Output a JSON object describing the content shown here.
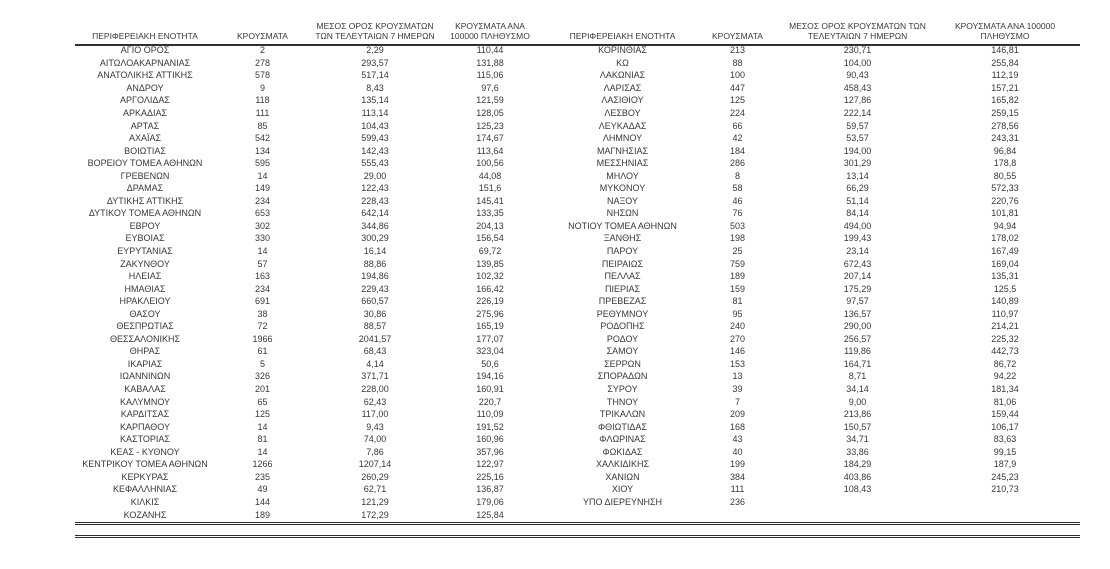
{
  "document": {
    "kind": "regional-cases-report-table",
    "language": "el"
  },
  "colors": {
    "text": "#383838",
    "rules": "#2f2f2f",
    "background": "#ffffff"
  },
  "table": {
    "columns": [
      "ΠΕΡΙΦΕΡΕΙΑΚΗ ΕΝΟΤΗΤΑ",
      "ΚΡΟΥΣΜΑΤΑ",
      "ΜΕΣΟΣ ΟΡΟΣ ΚΡΟΥΣΜΑΤΩΝ ΤΩΝ ΤΕΛΕΥΤΑΙΩΝ 7 ΗΜΕΡΩΝ",
      "ΚΡΟΥΣΜΑΤΑ ΑΝΑ 100000 ΠΛΗΘΥΣΜΟ"
    ],
    "left_rows": [
      [
        "ΑΓΙΟ ΟΡΟΣ",
        "2",
        "2,29",
        "110,44"
      ],
      [
        "ΑΙΤΩΛΟΑΚΑΡΝΑΝΙΑΣ",
        "278",
        "293,57",
        "131,88"
      ],
      [
        "ΑΝΑΤΟΛΙΚΗΣ ΑΤΤΙΚΗΣ",
        "578",
        "517,14",
        "115,06"
      ],
      [
        "ΑΝΔΡΟΥ",
        "9",
        "8,43",
        "97,6"
      ],
      [
        "ΑΡΓΟΛΙΔΑΣ",
        "118",
        "135,14",
        "121,59"
      ],
      [
        "ΑΡΚΑΔΙΑΣ",
        "111",
        "113,14",
        "128,05"
      ],
      [
        "ΑΡΤΑΣ",
        "85",
        "104,43",
        "125,23"
      ],
      [
        "ΑΧΑΪΑΣ",
        "542",
        "599,43",
        "174,67"
      ],
      [
        "ΒΟΙΩΤΙΑΣ",
        "134",
        "142,43",
        "113,64"
      ],
      [
        "ΒΟΡΕΙΟΥ ΤΟΜΕΑ ΑΘΗΝΩΝ",
        "595",
        "555,43",
        "100,56"
      ],
      [
        "ΓΡΕΒΕΝΩΝ",
        "14",
        "29,00",
        "44,08"
      ],
      [
        "ΔΡΑΜΑΣ",
        "149",
        "122,43",
        "151,6"
      ],
      [
        "ΔΥΤΙΚΗΣ ΑΤΤΙΚΗΣ",
        "234",
        "228,43",
        "145,41"
      ],
      [
        "ΔΥΤΙΚΟΥ ΤΟΜΕΑ ΑΘΗΝΩΝ",
        "653",
        "642,14",
        "133,35"
      ],
      [
        "ΕΒΡΟΥ",
        "302",
        "344,86",
        "204,13"
      ],
      [
        "ΕΥΒΟΙΑΣ",
        "330",
        "300,29",
        "156,54"
      ],
      [
        "ΕΥΡΥΤΑΝΙΑΣ",
        "14",
        "16,14",
        "69,72"
      ],
      [
        "ΖΑΚΥΝΘΟΥ",
        "57",
        "88,86",
        "139,85"
      ],
      [
        "ΗΛΕΙΑΣ",
        "163",
        "194,86",
        "102,32"
      ],
      [
        "ΗΜΑΘΙΑΣ",
        "234",
        "229,43",
        "166,42"
      ],
      [
        "ΗΡΑΚΛΕΙΟΥ",
        "691",
        "660,57",
        "226,19"
      ],
      [
        "ΘΑΣΟΥ",
        "38",
        "30,86",
        "275,96"
      ],
      [
        "ΘΕΣΠΡΩΤΙΑΣ",
        "72",
        "88,57",
        "165,19"
      ],
      [
        "ΘΕΣΣΑΛΟΝΙΚΗΣ",
        "1966",
        "2041,57",
        "177,07"
      ],
      [
        "ΘΗΡΑΣ",
        "61",
        "68,43",
        "323,04"
      ],
      [
        "ΙΚΑΡΙΑΣ",
        "5",
        "4,14",
        "50,6"
      ],
      [
        "ΙΩΑΝΝΙΝΩΝ",
        "326",
        "371,71",
        "194,16"
      ],
      [
        "ΚΑΒΑΛΑΣ",
        "201",
        "228,00",
        "160,91"
      ],
      [
        "ΚΑΛΥΜΝΟΥ",
        "65",
        "62,43",
        "220,7"
      ],
      [
        "ΚΑΡΔΙΤΣΑΣ",
        "125",
        "117,00",
        "110,09"
      ],
      [
        "ΚΑΡΠΑΘΟΥ",
        "14",
        "9,43",
        "191,52"
      ],
      [
        "ΚΑΣΤΟΡΙΑΣ",
        "81",
        "74,00",
        "160,96"
      ],
      [
        "ΚΕΑΣ - ΚΥΘΝΟΥ",
        "14",
        "7,86",
        "357,96"
      ],
      [
        "ΚΕΝΤΡΙΚΟΥ ΤΟΜΕΑ ΑΘΗΝΩΝ",
        "1266",
        "1207,14",
        "122,97"
      ],
      [
        "ΚΕΡΚΥΡΑΣ",
        "235",
        "260,29",
        "225,16"
      ],
      [
        "ΚΕΦΑΛΛΗΝΙΑΣ",
        "49",
        "62,71",
        "136,87"
      ],
      [
        "ΚΙΛΚΙΣ",
        "144",
        "121,29",
        "179,06"
      ],
      [
        "ΚΟΖΑΝΗΣ",
        "189",
        "172,29",
        "125,84"
      ]
    ],
    "right_rows": [
      [
        "ΚΟΡΙΝΘΙΑΣ",
        "213",
        "230,71",
        "146,81"
      ],
      [
        "ΚΩ",
        "88",
        "104,00",
        "255,84"
      ],
      [
        "ΛΑΚΩΝΙΑΣ",
        "100",
        "90,43",
        "112,19"
      ],
      [
        "ΛΑΡΙΣΑΣ",
        "447",
        "458,43",
        "157,21"
      ],
      [
        "ΛΑΣΙΘΙΟΥ",
        "125",
        "127,86",
        "165,82"
      ],
      [
        "ΛΕΣΒΟΥ",
        "224",
        "222,14",
        "259,15"
      ],
      [
        "ΛΕΥΚΑΔΑΣ",
        "66",
        "59,57",
        "278,56"
      ],
      [
        "ΛΗΜΝΟΥ",
        "42",
        "53,57",
        "243,31"
      ],
      [
        "ΜΑΓΝΗΣΙΑΣ",
        "184",
        "194,00",
        "96,84"
      ],
      [
        "ΜΕΣΣΗΝΙΑΣ",
        "286",
        "301,29",
        "178,8"
      ],
      [
        "ΜΗΛΟΥ",
        "8",
        "13,14",
        "80,55"
      ],
      [
        "ΜΥΚΟΝΟΥ",
        "58",
        "66,29",
        "572,33"
      ],
      [
        "ΝΑΞΟΥ",
        "46",
        "51,14",
        "220,76"
      ],
      [
        "ΝΗΣΩΝ",
        "76",
        "84,14",
        "101,81"
      ],
      [
        "ΝΟΤΙΟΥ ΤΟΜΕΑ ΑΘΗΝΩΝ",
        "503",
        "494,00",
        "94,94"
      ],
      [
        "ΞΑΝΘΗΣ",
        "198",
        "199,43",
        "178,02"
      ],
      [
        "ΠΑΡΟΥ",
        "25",
        "23,14",
        "167,49"
      ],
      [
        "ΠΕΙΡΑΙΩΣ",
        "759",
        "672,43",
        "169,04"
      ],
      [
        "ΠΕΛΛΑΣ",
        "189",
        "207,14",
        "135,31"
      ],
      [
        "ΠΙΕΡΙΑΣ",
        "159",
        "175,29",
        "125,5"
      ],
      [
        "ΠΡΕΒΕΖΑΣ",
        "81",
        "97,57",
        "140,89"
      ],
      [
        "ΡΕΘΥΜΝΟΥ",
        "95",
        "136,57",
        "110,97"
      ],
      [
        "ΡΟΔΟΠΗΣ",
        "240",
        "290,00",
        "214,21"
      ],
      [
        "ΡΟΔΟΥ",
        "270",
        "256,57",
        "225,32"
      ],
      [
        "ΣΑΜΟΥ",
        "146",
        "119,86",
        "442,73"
      ],
      [
        "ΣΕΡΡΩΝ",
        "153",
        "164,71",
        "86,72"
      ],
      [
        "ΣΠΟΡΑΔΩΝ",
        "13",
        "8,71",
        "94,22"
      ],
      [
        "ΣΥΡΟΥ",
        "39",
        "34,14",
        "181,34"
      ],
      [
        "ΤΗΝΟΥ",
        "7",
        "9,00",
        "81,06"
      ],
      [
        "ΤΡΙΚΑΛΩΝ",
        "209",
        "213,86",
        "159,44"
      ],
      [
        "ΦΘΙΩΤΙΔΑΣ",
        "168",
        "150,57",
        "106,17"
      ],
      [
        "ΦΛΩΡΙΝΑΣ",
        "43",
        "34,71",
        "83,63"
      ],
      [
        "ΦΩΚΙΔΑΣ",
        "40",
        "33,86",
        "99,15"
      ],
      [
        "ΧΑΛΚΙΔΙΚΗΣ",
        "199",
        "184,29",
        "187,9"
      ],
      [
        "ΧΑΝΙΩΝ",
        "384",
        "403,86",
        "245,23"
      ],
      [
        "ΧΙΟΥ",
        "111",
        "108,43",
        "210,73"
      ],
      [
        "ΥΠΟ ΔΙΕΡΕΥΝΗΣΗ",
        "236",
        "",
        ""
      ]
    ]
  }
}
